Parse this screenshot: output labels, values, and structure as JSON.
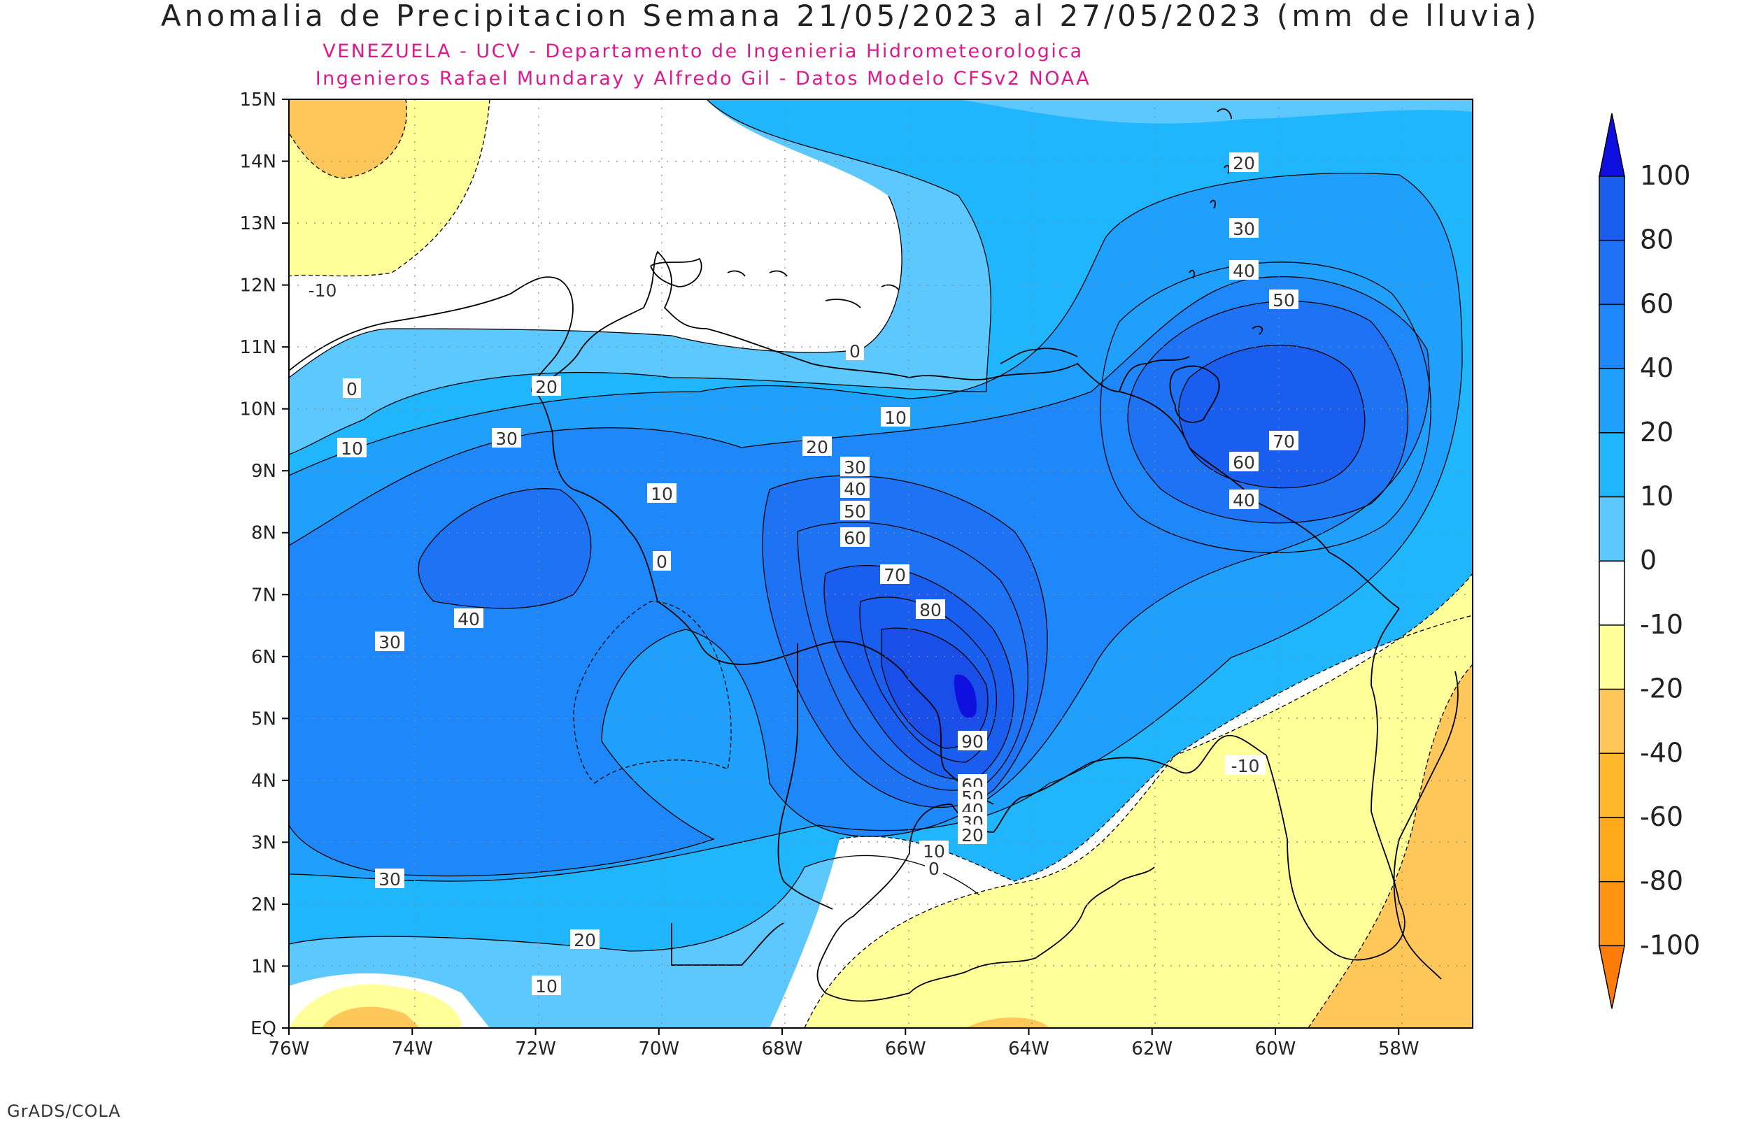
{
  "title": "Anomalia de Precipitacion Semana 21/05/2023 al 27/05/2023 (mm de lluvia)",
  "subtitle_1": "VENEZUELA - UCV - Departamento de Ingenieria Hidrometeorologica",
  "subtitle_2": "Ingenieros Rafael Mundaray y Alfredo Gil - Datos Modelo CFSv2 NOAA",
  "footer": "GrADS/COLA",
  "lat_labels": [
    "15N",
    "14N",
    "13N",
    "12N",
    "11N",
    "10N",
    "9N",
    "8N",
    "7N",
    "6N",
    "5N",
    "4N",
    "3N",
    "2N",
    "1N",
    "EQ"
  ],
  "lon_labels": [
    "76W",
    "74W",
    "72W",
    "70W",
    "68W",
    "66W",
    "64W",
    "62W",
    "60W",
    "58W"
  ],
  "colorbar": {
    "levels": [
      "100",
      "80",
      "60",
      "40",
      "20",
      "10",
      "0",
      "-10",
      "-20",
      "-40",
      "-60",
      "-80",
      "-100"
    ],
    "colors": [
      "#0f10e0",
      "#1a5ef0",
      "#1e73f5",
      "#1e88fa",
      "#1fa0fd",
      "#20b6fe",
      "#5cc8fe",
      "#ffffff",
      "#ffff99",
      "#ffc75a",
      "#ffb82b",
      "#ffa81a",
      "#ff9410",
      "#ff7c08"
    ]
  },
  "contour_labels": [
    {
      "text": "20"
    },
    {
      "text": "30"
    },
    {
      "text": "40"
    },
    {
      "text": "50"
    },
    {
      "text": "70"
    },
    {
      "text": "60"
    },
    {
      "text": "40"
    },
    {
      "text": "0"
    },
    {
      "text": "10"
    },
    {
      "text": "20"
    },
    {
      "text": "30"
    },
    {
      "text": "40"
    },
    {
      "text": "50"
    },
    {
      "text": "60"
    },
    {
      "text": "70"
    },
    {
      "text": "80"
    },
    {
      "text": "90"
    },
    {
      "text": "60"
    },
    {
      "text": "50"
    },
    {
      "text": "40"
    },
    {
      "text": "30"
    },
    {
      "text": "20"
    },
    {
      "text": "10"
    },
    {
      "text": "0"
    },
    {
      "text": "0"
    },
    {
      "text": "10"
    },
    {
      "text": "20"
    },
    {
      "text": "30"
    },
    {
      "text": "40"
    },
    {
      "text": "30"
    },
    {
      "text": "30"
    },
    {
      "text": "20"
    },
    {
      "text": "10"
    },
    {
      "text": "10"
    },
    {
      "text": "0"
    },
    {
      "text": "-10"
    },
    {
      "text": "-10"
    }
  ]
}
